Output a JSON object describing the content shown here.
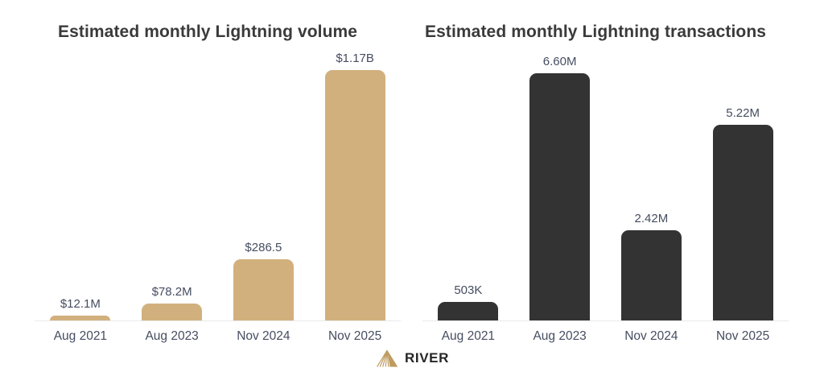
{
  "page": {
    "background": "#ffffff",
    "title_color": "#3a3a3a",
    "label_color": "#454d60",
    "axis_line_color": "#e9e9e9"
  },
  "chart_data": [
    {
      "type": "bar",
      "title": "Estimated monthly Lightning volume",
      "categories": [
        "Aug 2021",
        "Aug 2023",
        "Nov 2024",
        "Nov 2025"
      ],
      "values": [
        12.1,
        78.2,
        286.5,
        1170
      ],
      "value_labels": [
        "$12.1M",
        "$78.2M",
        "$286.5",
        "$1.17B"
      ],
      "unit": "USD millions",
      "xlabel": "",
      "ylabel": "",
      "ylim": [
        0,
        1240
      ],
      "grid": false,
      "legend": "none",
      "bar_color": "#d2b07e"
    },
    {
      "type": "bar",
      "title": "Estimated monthly Lightning transactions",
      "categories": [
        "Aug 2021",
        "Aug 2023",
        "Nov 2024",
        "Nov 2025"
      ],
      "values": [
        0.503,
        6.6,
        2.42,
        5.22
      ],
      "value_labels": [
        "503K",
        "6.60M",
        "2.42M",
        "5.22M"
      ],
      "unit": "transactions millions",
      "xlabel": "",
      "ylabel": "",
      "ylim": [
        0,
        7.1
      ],
      "grid": false,
      "legend": "none",
      "bar_color": "#333333"
    }
  ],
  "footer": {
    "brand": "RIVER",
    "logo_icon": "river-mountain-icon",
    "logo_color": "#bf9b60",
    "text_color": "#262626"
  }
}
